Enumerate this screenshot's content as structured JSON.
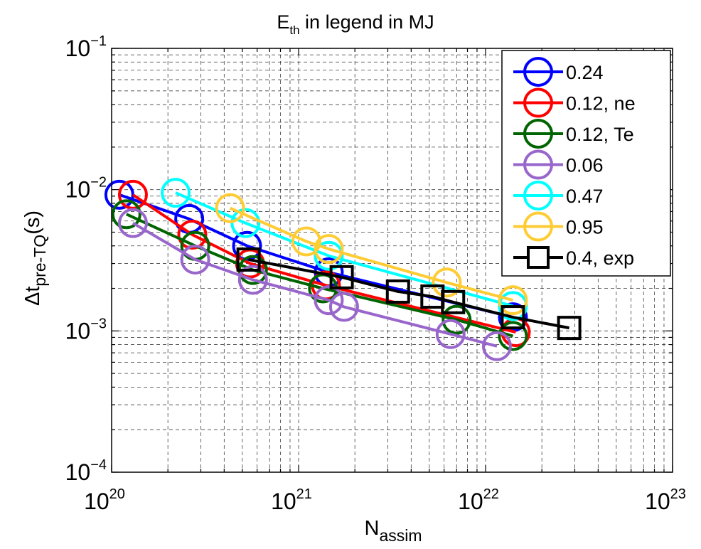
{
  "chart_data": {
    "type": "line",
    "title": {
      "main": "E",
      "sub": "th",
      "rest": "  in legend in MJ"
    },
    "xlabel": {
      "main": "N",
      "sub": "assim"
    },
    "ylabel": {
      "main": "Δt",
      "sub": "pre-TQ",
      "rest": "(s)"
    },
    "x_scale": "log",
    "y_scale": "log",
    "xlim": [
      1e+20,
      1e+23
    ],
    "ylim": [
      0.0001,
      0.1
    ],
    "grid": true,
    "legend_position": "top-right",
    "x_ticks": [
      {
        "value": 1e+20,
        "base": "10",
        "exp": "20"
      },
      {
        "value": 1e+21,
        "base": "10",
        "exp": "21"
      },
      {
        "value": 1e+22,
        "base": "10",
        "exp": "22"
      },
      {
        "value": 1e+23,
        "base": "10",
        "exp": "23"
      }
    ],
    "y_ticks": [
      {
        "value": 0.0001,
        "base": "10",
        "exp": "−4"
      },
      {
        "value": 0.001,
        "base": "10",
        "exp": "−3"
      },
      {
        "value": 0.01,
        "base": "10",
        "exp": "−2"
      },
      {
        "value": 0.1,
        "base": "10",
        "exp": "−1"
      }
    ],
    "series": [
      {
        "name": "0.24",
        "color": "#0000ff",
        "marker": "circle",
        "x": [
          1.1e+20,
          2.6e+20,
          5.3e+20,
          1.45e+21,
          1.4e+22
        ],
        "y": [
          0.0092,
          0.0062,
          0.004,
          0.0026,
          0.00125
        ]
      },
      {
        "name": "0.12, ne",
        "color": "#ff0000",
        "marker": "circle",
        "x": [
          1.3e+20,
          2.7e+20,
          5.5e+20,
          1.4e+21,
          1.45e+22
        ],
        "y": [
          0.0092,
          0.0048,
          0.003,
          0.0021,
          0.00098
        ]
      },
      {
        "name": "0.12, Te",
        "color": "#006400",
        "marker": "circle",
        "x": [
          1.2e+20,
          2.8e+20,
          5.7e+20,
          1.35e+21,
          7e+21,
          1.4e+22
        ],
        "y": [
          0.0067,
          0.004,
          0.0027,
          0.002,
          0.0012,
          0.00092
        ]
      },
      {
        "name": "0.06",
        "color": "#9966cc",
        "marker": "circle",
        "x": [
          1.3e+20,
          2.8e+20,
          5.7e+20,
          1.45e+21,
          1.75e+21,
          6.5e+21,
          1.15e+22
        ],
        "y": [
          0.0058,
          0.0032,
          0.0023,
          0.00165,
          0.00148,
          0.00095,
          0.00078
        ]
      },
      {
        "name": "0.47",
        "color": "#00ffff",
        "marker": "circle",
        "x": [
          2.2e+20,
          5.2e+20,
          1.45e+21,
          1.4e+22
        ],
        "y": [
          0.0095,
          0.0058,
          0.0034,
          0.0015
        ]
      },
      {
        "name": "0.95",
        "color": "#ffcc33",
        "marker": "circle",
        "x": [
          4.3e+20,
          1.1e+21,
          1.45e+21,
          6.2e+21,
          1.4e+22
        ],
        "y": [
          0.0074,
          0.0043,
          0.0038,
          0.0022,
          0.00165
        ]
      },
      {
        "name": "0.4, exp",
        "color": "#000000",
        "marker": "square",
        "x": [
          5.4e+20,
          1.7e+21,
          3.4e+21,
          5.2e+21,
          6.7e+21,
          1.4e+22,
          2.8e+22
        ],
        "y": [
          0.0032,
          0.0024,
          0.0019,
          0.00175,
          0.0016,
          0.00125,
          0.00105
        ]
      }
    ]
  }
}
